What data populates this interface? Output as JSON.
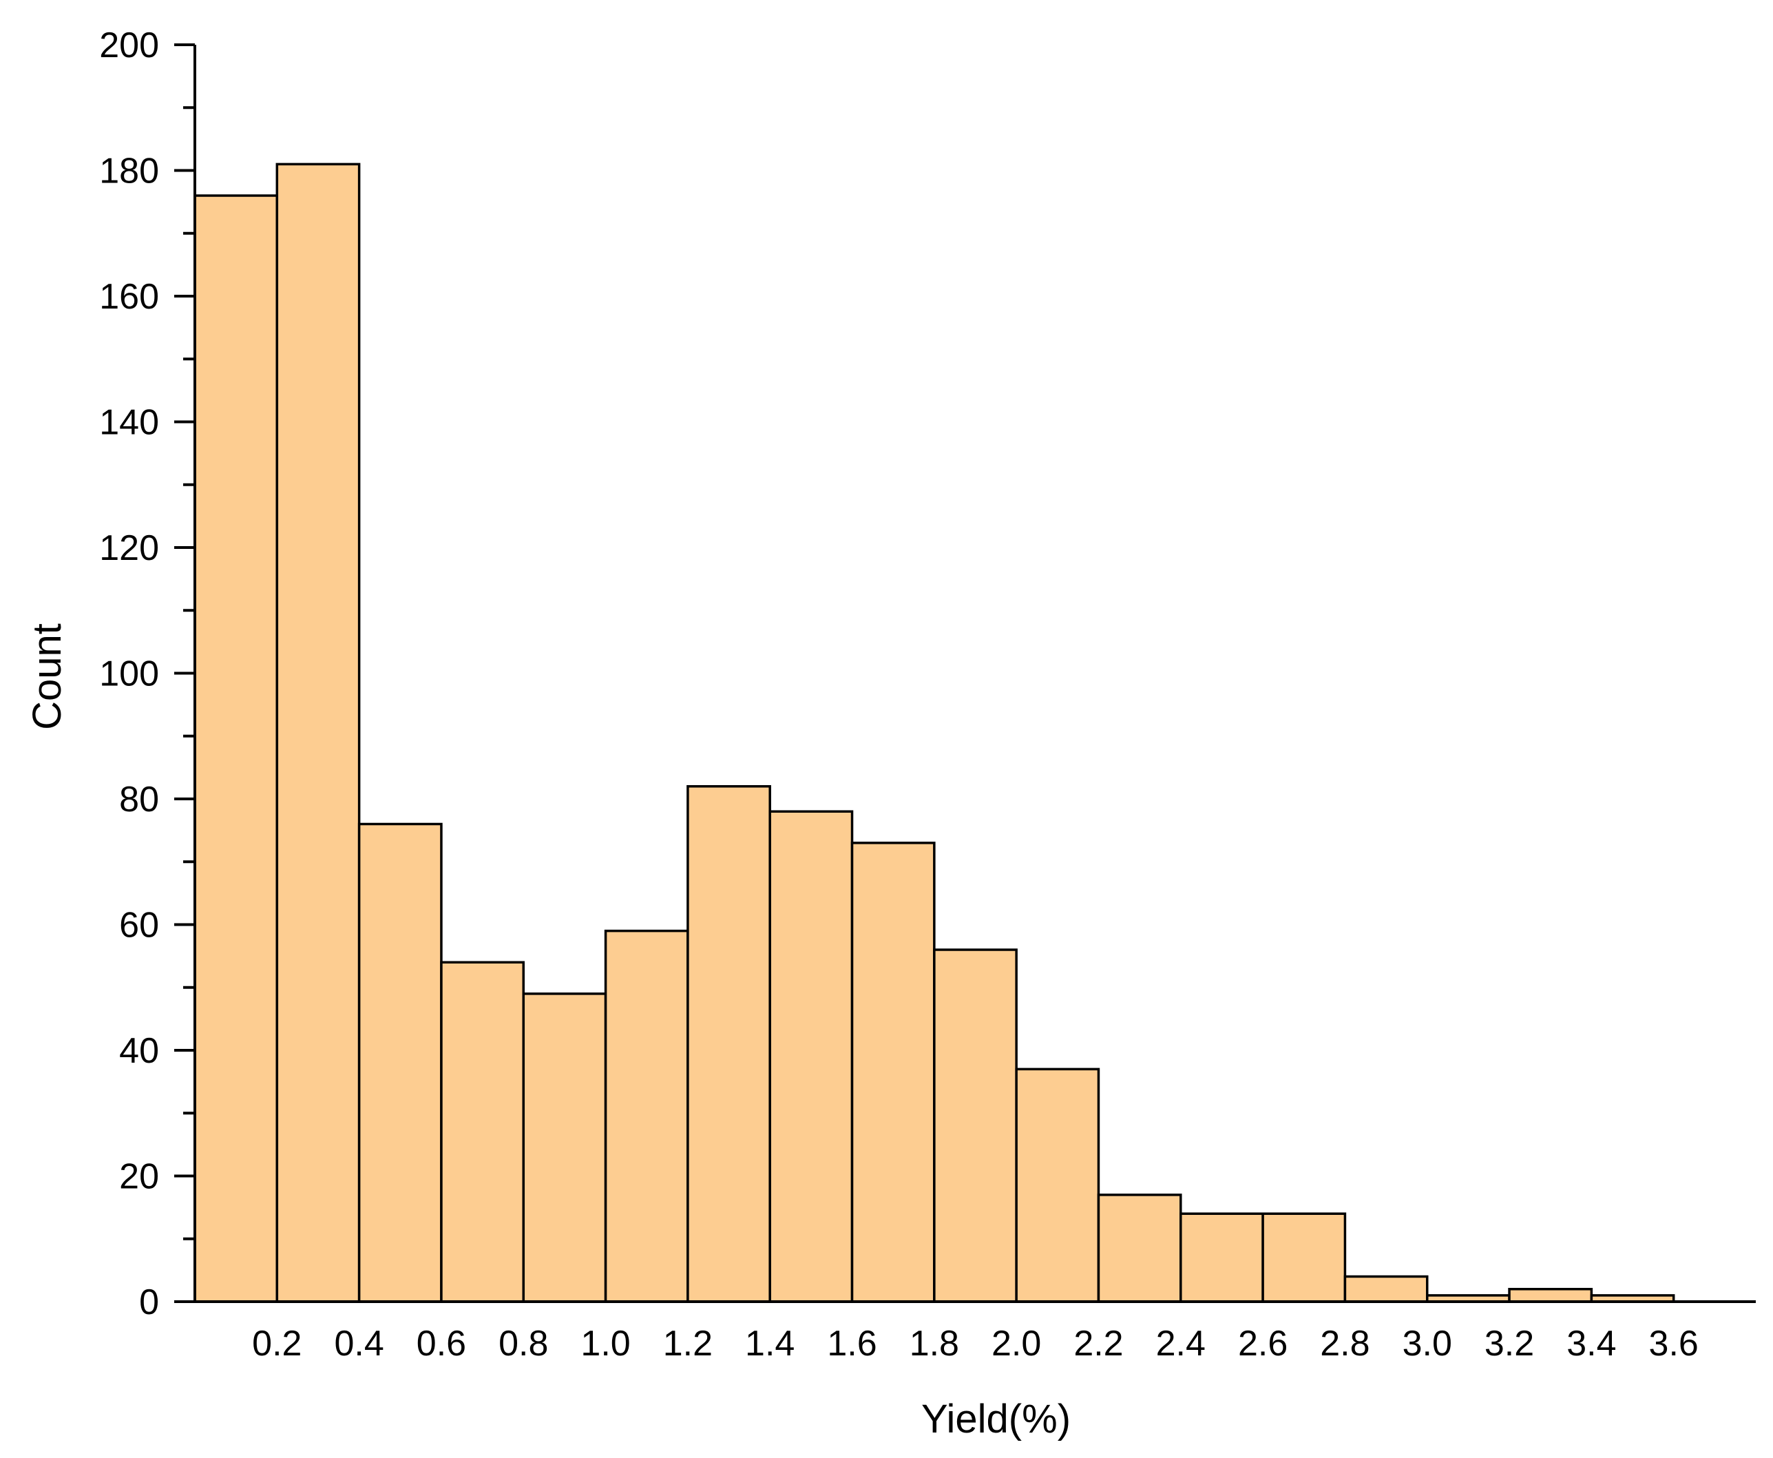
{
  "chart_data": {
    "type": "bar",
    "subtype": "histogram",
    "xlabel": "Yield(%)",
    "ylabel": "Count",
    "bin_edges": [
      0.0,
      0.2,
      0.4,
      0.6,
      0.8,
      1.0,
      1.2,
      1.4,
      1.6,
      1.8,
      2.0,
      2.2,
      2.4,
      2.6,
      2.8,
      3.0,
      3.2,
      3.4,
      3.6
    ],
    "values": [
      176,
      181,
      76,
      54,
      49,
      59,
      82,
      78,
      73,
      56,
      37,
      17,
      14,
      14,
      4,
      1,
      2,
      1
    ],
    "xlim": [
      0.0,
      3.8
    ],
    "ylim": [
      0,
      200
    ],
    "x_ticks": [
      "0.2",
      "0.4",
      "0.6",
      "0.8",
      "1.0",
      "1.2",
      "1.4",
      "1.6",
      "1.8",
      "2.0",
      "2.2",
      "2.4",
      "2.6",
      "2.8",
      "3.0",
      "3.2",
      "3.4",
      "3.6"
    ],
    "y_ticks": [
      "0",
      "20",
      "40",
      "60",
      "80",
      "100",
      "120",
      "140",
      "160",
      "180",
      "200"
    ],
    "grid": false,
    "legend": "none",
    "bar_color": "#FDCD91"
  }
}
